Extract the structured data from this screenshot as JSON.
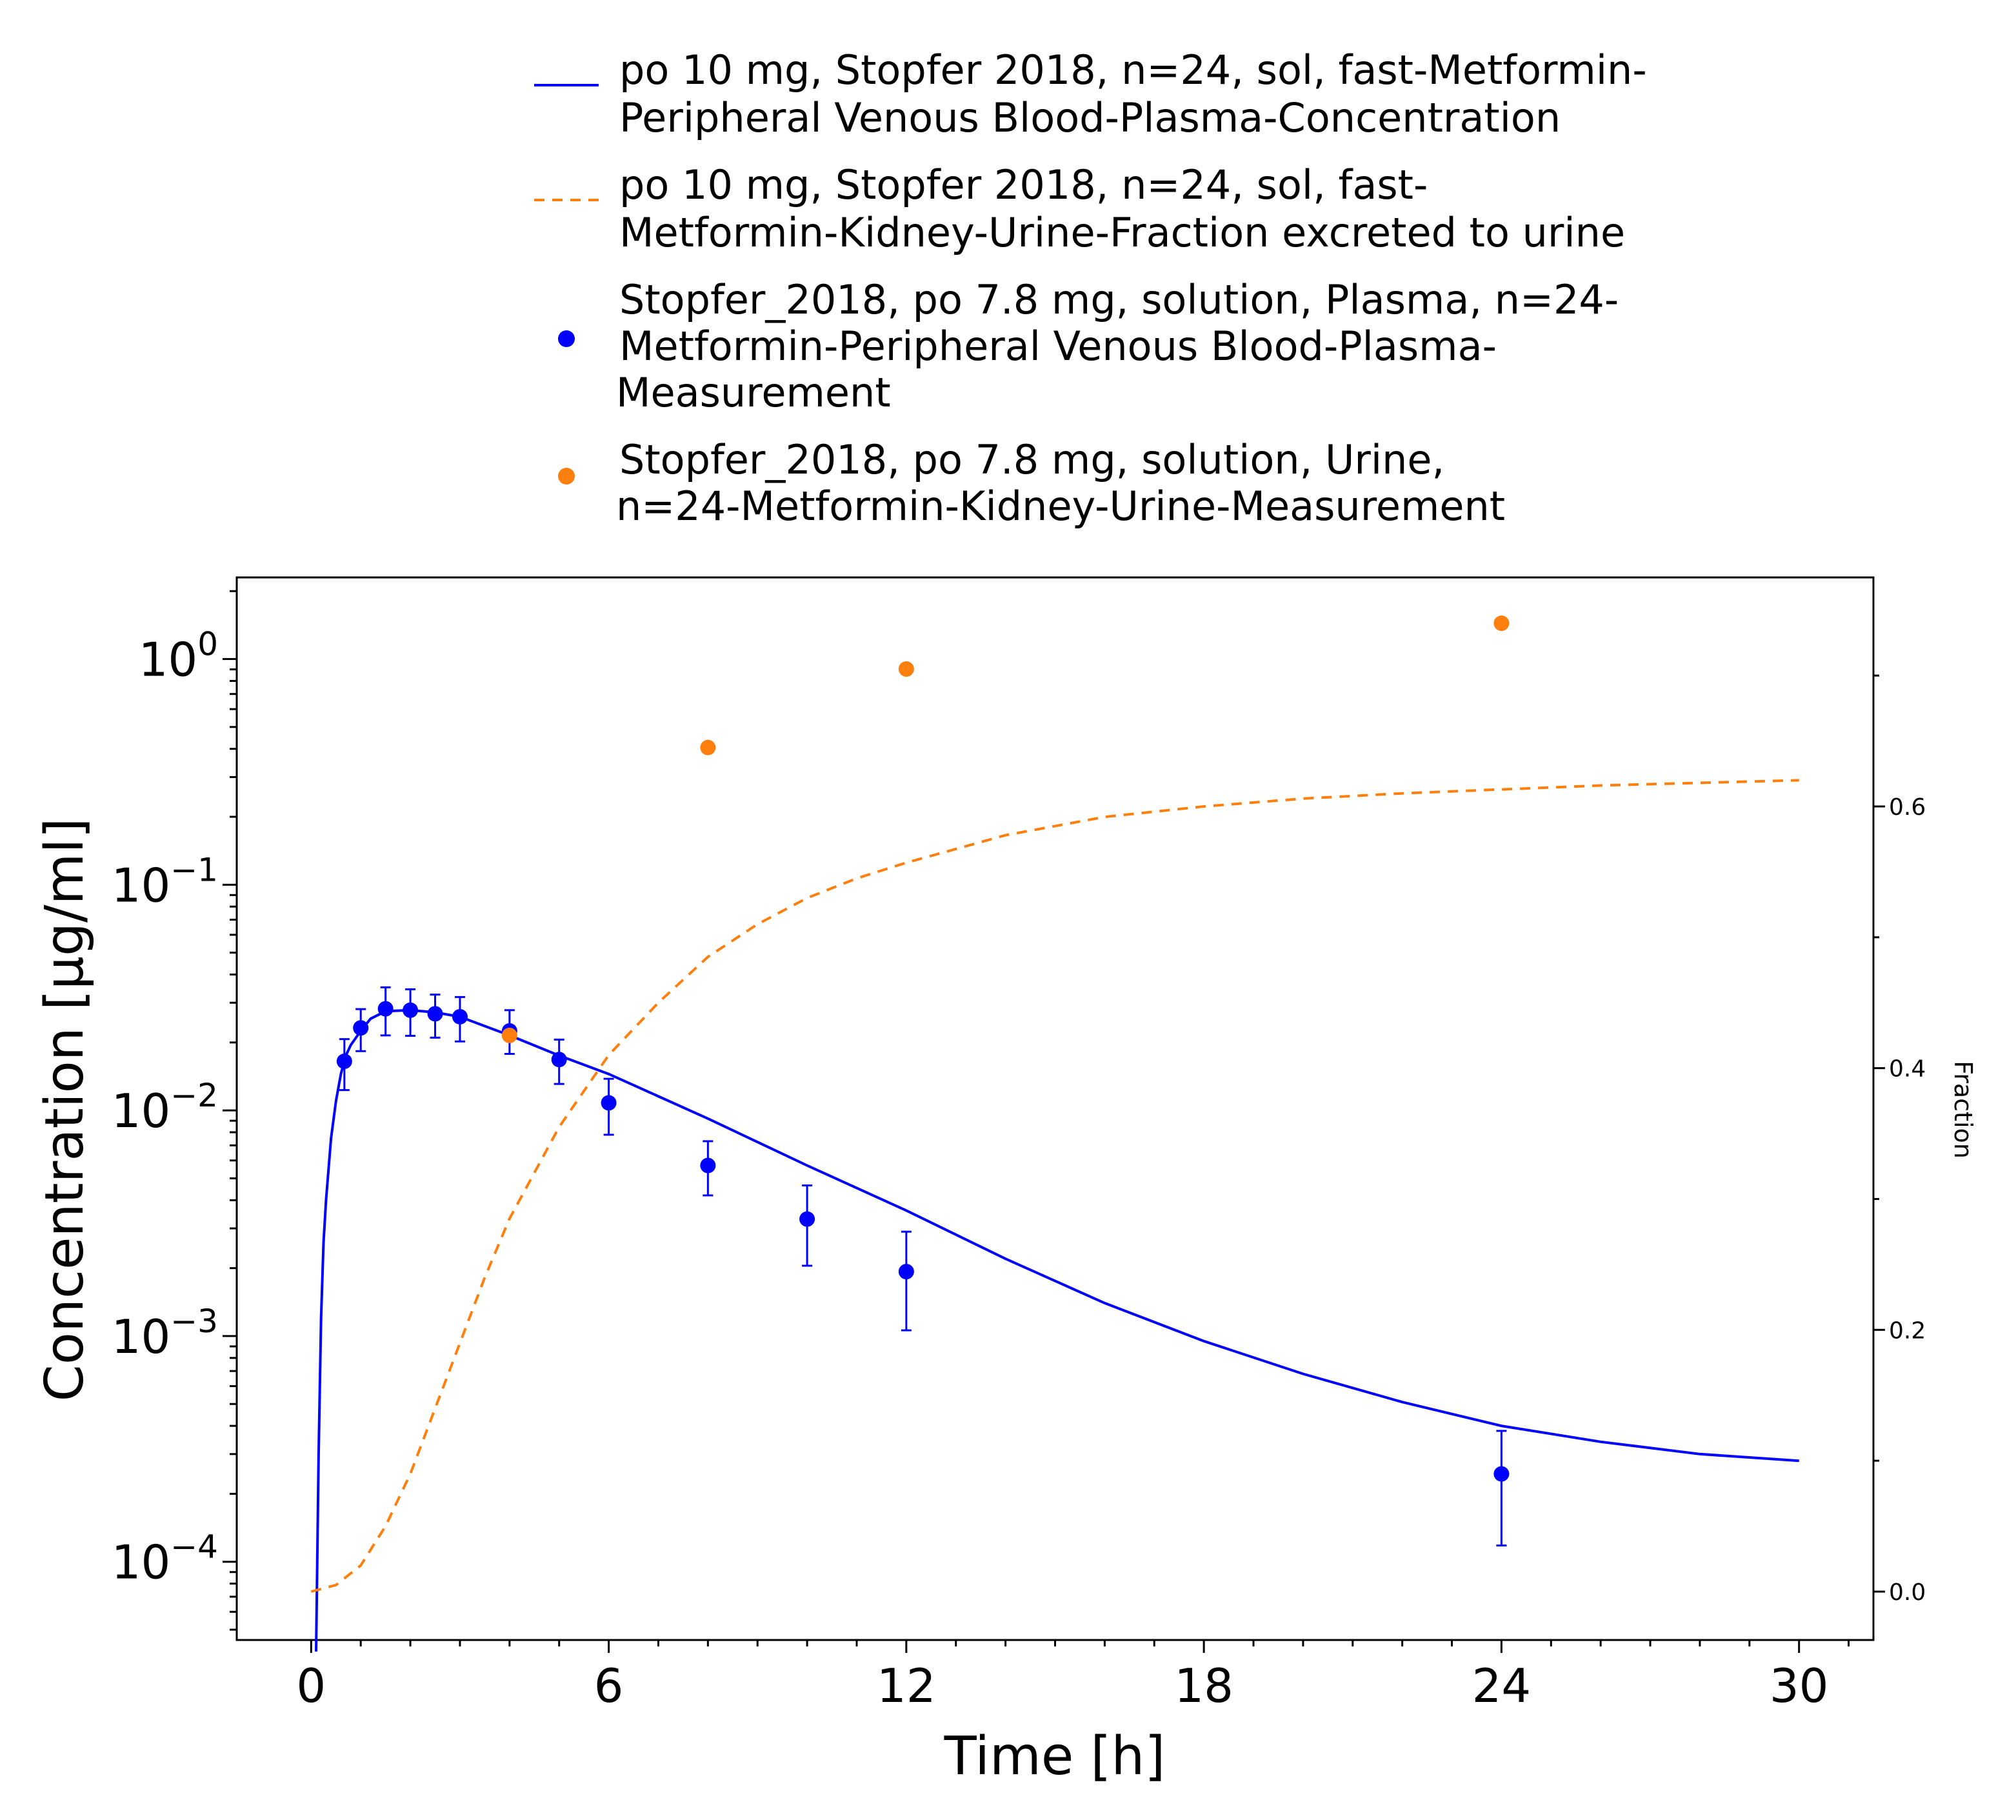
{
  "chart_data": {
    "type": "line",
    "xlabel": "Time [h]",
    "ylabel": "Concentration [µg/ml]",
    "y2label": "Fraction",
    "xlim": [
      -1.5,
      31.5
    ],
    "ylim": [
      4.5e-05,
      2.3
    ],
    "y2lim": [
      -0.037,
      0.775
    ],
    "yscale": "log",
    "x_ticks": [
      "0",
      "6",
      "12",
      "18",
      "24",
      "30"
    ],
    "y_ticks": [
      {
        "base": "10",
        "exp": "0"
      },
      {
        "base": "10",
        "exp": "−1"
      },
      {
        "base": "10",
        "exp": "−2"
      },
      {
        "base": "10",
        "exp": "−3"
      },
      {
        "base": "10",
        "exp": "−4"
      }
    ],
    "y2_ticks": [
      "0.0",
      "0.2",
      "0.4",
      "0.6"
    ],
    "legend_placement": "top",
    "series": [
      {
        "name_lines": [
          "po 10 mg, Stopfer 2018, n=24, sol, fast-Metformin-",
          "Peripheral Venous Blood-Plasma-Concentration"
        ],
        "kind": "line",
        "axis": "left",
        "color": "#0000ff",
        "x": [
          0.1,
          0.15,
          0.2,
          0.25,
          0.3,
          0.4,
          0.5,
          0.6,
          0.7,
          0.8,
          1.0,
          1.2,
          1.5,
          2.0,
          2.5,
          3.0,
          4.0,
          5.0,
          6.0,
          8.0,
          10.0,
          12.0,
          14.0,
          16.0,
          18.0,
          20.0,
          22.0,
          24.0,
          26.0,
          28.0,
          30.0
        ],
        "y": [
          4e-05,
          0.0003,
          0.0012,
          0.0026,
          0.004,
          0.0075,
          0.011,
          0.0145,
          0.0175,
          0.0195,
          0.0225,
          0.0255,
          0.0275,
          0.0278,
          0.0272,
          0.026,
          0.0215,
          0.0175,
          0.0145,
          0.0092,
          0.0057,
          0.0036,
          0.0022,
          0.0014,
          0.00095,
          0.00068,
          0.00051,
          0.0004,
          0.00034,
          0.0003,
          0.00028
        ]
      },
      {
        "name_lines": [
          "po 10 mg, Stopfer 2018, n=24, sol, fast-",
          "Metformin-Kidney-Urine-Fraction excreted to urine"
        ],
        "kind": "dashed-line",
        "axis": "right",
        "color": "#ff7f0e",
        "x": [
          0,
          0.5,
          1,
          1.5,
          2,
          2.5,
          3,
          3.5,
          4,
          5,
          6,
          7,
          8,
          9,
          10,
          11,
          12,
          14,
          16,
          18,
          20,
          22,
          24,
          26,
          28,
          30
        ],
        "y": [
          0.0,
          0.005,
          0.02,
          0.05,
          0.09,
          0.14,
          0.19,
          0.24,
          0.285,
          0.355,
          0.41,
          0.45,
          0.485,
          0.51,
          0.53,
          0.545,
          0.557,
          0.578,
          0.592,
          0.6,
          0.606,
          0.61,
          0.613,
          0.616,
          0.618,
          0.62
        ]
      },
      {
        "name_lines": [
          "Stopfer_2018, po 7.8 mg, solution, Plasma, n=24-",
          "Metformin-Peripheral Venous Blood-Plasma-",
          "Measurement"
        ],
        "kind": "scatter",
        "axis": "left",
        "color": "#0000ff",
        "x": [
          0.67,
          1.0,
          1.5,
          2.0,
          2.5,
          3.0,
          4.0,
          5.0,
          6.0,
          8.0,
          10.0,
          12.0,
          24.0
        ],
        "y": [
          0.0165,
          0.0232,
          0.0282,
          0.0278,
          0.0268,
          0.026,
          0.0225,
          0.0168,
          0.0108,
          0.0057,
          0.0033,
          0.00193,
          0.000245
        ],
        "err_low": [
          0.0123,
          0.0183,
          0.0215,
          0.0214,
          0.021,
          0.0202,
          0.0178,
          0.0131,
          0.0078,
          0.0042,
          0.00205,
          0.00106,
          0.000118
        ],
        "err_high": [
          0.0207,
          0.0281,
          0.0351,
          0.0344,
          0.0326,
          0.0318,
          0.0278,
          0.0206,
          0.0138,
          0.0073,
          0.00465,
          0.0029,
          0.00038
        ]
      },
      {
        "name_lines": [
          "Stopfer_2018, po 7.8 mg, solution, Urine,",
          "n=24-Metformin-Kidney-Urine-Measurement"
        ],
        "kind": "scatter",
        "axis": "right",
        "color": "#ff7f0e",
        "x": [
          4.0,
          8.0,
          12.0,
          24.0
        ],
        "y": [
          0.425,
          0.645,
          0.705,
          0.74
        ]
      }
    ]
  }
}
